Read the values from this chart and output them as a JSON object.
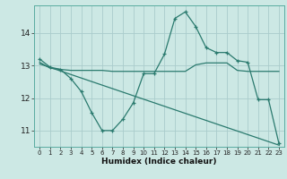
{
  "xlabel": "Humidex (Indice chaleur)",
  "bg_color": "#cce8e4",
  "grid_color": "#aacccc",
  "line_color": "#2a7a6e",
  "xlim": [
    -0.5,
    23.5
  ],
  "ylim": [
    10.5,
    14.85
  ],
  "yticks": [
    11,
    12,
    13,
    14
  ],
  "xticks": [
    0,
    1,
    2,
    3,
    4,
    5,
    6,
    7,
    8,
    9,
    10,
    11,
    12,
    13,
    14,
    15,
    16,
    17,
    18,
    19,
    20,
    21,
    22,
    23
  ],
  "line1_x": [
    0,
    1,
    2,
    3,
    4,
    5,
    6,
    7,
    8,
    9,
    10,
    11,
    12,
    13,
    14,
    15,
    16,
    17,
    18,
    19,
    20,
    21,
    22,
    23
  ],
  "line1_y": [
    13.2,
    12.95,
    12.88,
    12.6,
    12.2,
    11.55,
    11.0,
    11.0,
    11.35,
    11.85,
    12.75,
    12.75,
    13.35,
    14.45,
    14.65,
    14.2,
    13.55,
    13.4,
    13.4,
    13.15,
    13.1,
    11.95,
    11.95,
    10.6
  ],
  "line1_markers_x": [
    0,
    1,
    2,
    3,
    4,
    5,
    6,
    7,
    8,
    9,
    10,
    11,
    12,
    13,
    14,
    15,
    16,
    17,
    18,
    19,
    20,
    21,
    22,
    23
  ],
  "line2_x": [
    0,
    1,
    2,
    3,
    4,
    5,
    6,
    7,
    8,
    9,
    10,
    11,
    12,
    13,
    14,
    15,
    16,
    17,
    18,
    19,
    20,
    21,
    22,
    23
  ],
  "line2_y": [
    13.1,
    12.92,
    12.88,
    12.85,
    12.85,
    12.85,
    12.85,
    12.82,
    12.82,
    12.82,
    12.82,
    12.82,
    12.82,
    12.82,
    12.82,
    13.02,
    13.08,
    13.08,
    13.08,
    12.85,
    12.82,
    12.82,
    12.82,
    12.82
  ],
  "line3_x": [
    0,
    23
  ],
  "line3_y": [
    13.05,
    10.55
  ]
}
